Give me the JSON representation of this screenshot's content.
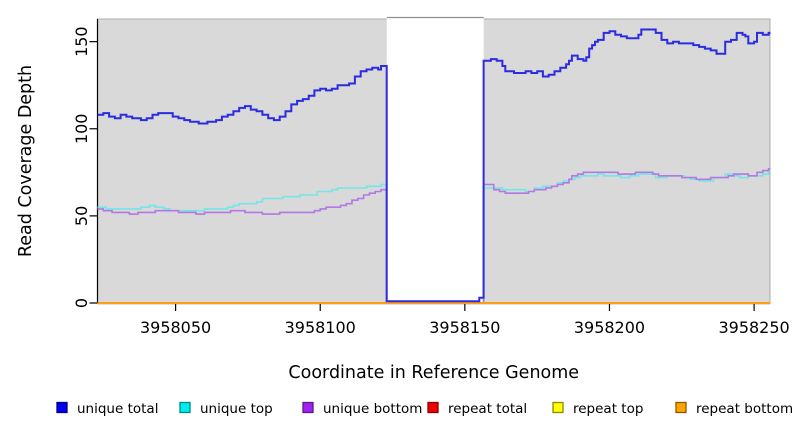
{
  "chart_data": {
    "type": "line",
    "title": "",
    "xlabel": "Coordinate in Reference Genome",
    "ylabel": "Read Coverage Depth",
    "xlim": [
      3958023,
      3958255.5
    ],
    "ylim": [
      0,
      163
    ],
    "grid": false,
    "plot_background": "#d9d9d9",
    "plot_border": "#ababab",
    "legend_position": "bottom",
    "x_ticks": {
      "values": [
        3958050,
        3958100,
        3958150,
        3958200,
        3958250
      ],
      "labels": [
        "3958050",
        "3958100",
        "3958150",
        "3958200",
        "3958250"
      ]
    },
    "y_ticks": {
      "values": [
        0,
        50,
        100,
        150
      ],
      "labels": [
        "0",
        "50",
        "100",
        "150"
      ]
    },
    "gap_region": {
      "x_start": 3958123,
      "x_end": 3958156.5,
      "fill": "#ffffff",
      "top_border": "#909090"
    },
    "series": [
      {
        "name": "repeat total",
        "color": "#e00000",
        "width": 1.5,
        "step": true,
        "points": [
          [
            3958023,
            0
          ],
          [
            3958256,
            0
          ]
        ]
      },
      {
        "name": "repeat top",
        "color": "#f2f200",
        "width": 1.5,
        "step": true,
        "points": [
          [
            3958023,
            0
          ],
          [
            3958256,
            0
          ]
        ]
      },
      {
        "name": "unique top",
        "color": "#74e6e8",
        "width": 1.6,
        "step": true,
        "points": [
          [
            3958023,
            55
          ],
          [
            3958026,
            54
          ],
          [
            3958029,
            54
          ],
          [
            3958032,
            54
          ],
          [
            3958035,
            54
          ],
          [
            3958038,
            55
          ],
          [
            3958041,
            56
          ],
          [
            3958043,
            55
          ],
          [
            3958046,
            54
          ],
          [
            3958048,
            53
          ],
          [
            3958051,
            53
          ],
          [
            3958054,
            53
          ],
          [
            3958057,
            53
          ],
          [
            3958060,
            54
          ],
          [
            3958063,
            54
          ],
          [
            3958066,
            54
          ],
          [
            3958068,
            55
          ],
          [
            3958070,
            56
          ],
          [
            3958072,
            57
          ],
          [
            3958075,
            57
          ],
          [
            3958078,
            58
          ],
          [
            3958080,
            60
          ],
          [
            3958084,
            60
          ],
          [
            3958087,
            61
          ],
          [
            3958090,
            61
          ],
          [
            3958093,
            62
          ],
          [
            3958096,
            62
          ],
          [
            3958099,
            64
          ],
          [
            3958102,
            64
          ],
          [
            3958104,
            65
          ],
          [
            3958106,
            66
          ],
          [
            3958110,
            66
          ],
          [
            3958113,
            66
          ],
          [
            3958116,
            67
          ],
          [
            3958119,
            67
          ],
          [
            3958121,
            68
          ],
          [
            3958123,
            0
          ],
          [
            3958156.5,
            66
          ],
          [
            3958160,
            66
          ],
          [
            3958163,
            65
          ],
          [
            3958166,
            65
          ],
          [
            3958169,
            65
          ],
          [
            3958171,
            64
          ],
          [
            3958174,
            66
          ],
          [
            3958177,
            67
          ],
          [
            3958180,
            67
          ],
          [
            3958182,
            69
          ],
          [
            3958184,
            70
          ],
          [
            3958186,
            71
          ],
          [
            3958188,
            72
          ],
          [
            3958190,
            73
          ],
          [
            3958193,
            73
          ],
          [
            3958196,
            74
          ],
          [
            3958198,
            73
          ],
          [
            3958201,
            73
          ],
          [
            3958204,
            72
          ],
          [
            3958207,
            73
          ],
          [
            3958210,
            74
          ],
          [
            3958213,
            74
          ],
          [
            3958216,
            72
          ],
          [
            3958218,
            72
          ],
          [
            3958220,
            73
          ],
          [
            3958223,
            73
          ],
          [
            3958226,
            72
          ],
          [
            3958228,
            71
          ],
          [
            3958231,
            70
          ],
          [
            3958234,
            70
          ],
          [
            3958236,
            72
          ],
          [
            3958239,
            72
          ],
          [
            3958240,
            74
          ],
          [
            3958243,
            73
          ],
          [
            3958245,
            72
          ],
          [
            3958248,
            73
          ],
          [
            3958251,
            73
          ],
          [
            3958253,
            74
          ],
          [
            3958255,
            76
          ],
          [
            3958256,
            76
          ]
        ]
      },
      {
        "name": "unique bottom",
        "color": "#b279e2",
        "width": 1.6,
        "step": true,
        "points": [
          [
            3958023,
            54
          ],
          [
            3958025,
            53
          ],
          [
            3958028,
            52
          ],
          [
            3958031,
            52
          ],
          [
            3958034,
            51
          ],
          [
            3958037,
            52
          ],
          [
            3958040,
            52
          ],
          [
            3958043,
            53
          ],
          [
            3958046,
            53
          ],
          [
            3958049,
            53
          ],
          [
            3958051,
            52
          ],
          [
            3958054,
            52
          ],
          [
            3958057,
            51
          ],
          [
            3958060,
            52
          ],
          [
            3958063,
            52
          ],
          [
            3958066,
            52
          ],
          [
            3958069,
            53
          ],
          [
            3958071,
            53
          ],
          [
            3958074,
            52
          ],
          [
            3958077,
            52
          ],
          [
            3958080,
            51
          ],
          [
            3958083,
            51
          ],
          [
            3958086,
            52
          ],
          [
            3958089,
            52
          ],
          [
            3958092,
            52
          ],
          [
            3958095,
            52
          ],
          [
            3958098,
            53
          ],
          [
            3958100,
            54
          ],
          [
            3958102,
            55
          ],
          [
            3958105,
            55
          ],
          [
            3958107,
            56
          ],
          [
            3958109,
            57
          ],
          [
            3958111,
            59
          ],
          [
            3958113,
            60
          ],
          [
            3958115,
            62
          ],
          [
            3958117,
            63
          ],
          [
            3958119,
            64
          ],
          [
            3958121,
            65
          ],
          [
            3958123,
            0
          ],
          [
            3958156.5,
            68
          ],
          [
            3958159,
            68
          ],
          [
            3958160,
            65
          ],
          [
            3958162,
            64
          ],
          [
            3958164,
            63
          ],
          [
            3958167,
            63
          ],
          [
            3958170,
            63
          ],
          [
            3958172,
            64
          ],
          [
            3958174,
            65
          ],
          [
            3958176,
            65
          ],
          [
            3958178,
            66
          ],
          [
            3958180,
            67
          ],
          [
            3958182,
            68
          ],
          [
            3958184,
            69
          ],
          [
            3958186,
            71
          ],
          [
            3958187,
            73
          ],
          [
            3958189,
            74
          ],
          [
            3958191,
            75
          ],
          [
            3958194,
            75
          ],
          [
            3958197,
            75
          ],
          [
            3958200,
            75
          ],
          [
            3958203,
            74
          ],
          [
            3958206,
            74
          ],
          [
            3958209,
            75
          ],
          [
            3958212,
            75
          ],
          [
            3958215,
            74
          ],
          [
            3958217,
            73
          ],
          [
            3958220,
            73
          ],
          [
            3958223,
            73
          ],
          [
            3958225,
            72
          ],
          [
            3958228,
            72
          ],
          [
            3958230,
            71
          ],
          [
            3958233,
            71
          ],
          [
            3958235,
            72
          ],
          [
            3958238,
            72
          ],
          [
            3958241,
            73
          ],
          [
            3958243,
            74
          ],
          [
            3958246,
            74
          ],
          [
            3958248,
            73
          ],
          [
            3958250,
            73
          ],
          [
            3958251,
            75
          ],
          [
            3958253,
            76
          ],
          [
            3958255,
            77
          ],
          [
            3958256,
            77
          ]
        ]
      },
      {
        "name": "repeat bottom",
        "color": "#ff9d15",
        "width": 2,
        "step": true,
        "points": [
          [
            3958023,
            0
          ],
          [
            3958256,
            0
          ]
        ]
      },
      {
        "name": "unique total",
        "color": "#2b2be0",
        "width": 2,
        "step": true,
        "points": [
          [
            3958023,
            108
          ],
          [
            3958025,
            109
          ],
          [
            3958027,
            107
          ],
          [
            3958029,
            106
          ],
          [
            3958031,
            108
          ],
          [
            3958033,
            107
          ],
          [
            3958035,
            106
          ],
          [
            3958038,
            105
          ],
          [
            3958040,
            106
          ],
          [
            3958042,
            108
          ],
          [
            3958044,
            109
          ],
          [
            3958047,
            109
          ],
          [
            3958049,
            107
          ],
          [
            3958051,
            106
          ],
          [
            3958053,
            105
          ],
          [
            3958055,
            104
          ],
          [
            3958058,
            103
          ],
          [
            3958061,
            104
          ],
          [
            3958064,
            105
          ],
          [
            3958066,
            107
          ],
          [
            3958068,
            108
          ],
          [
            3958070,
            110
          ],
          [
            3958072,
            112
          ],
          [
            3958074,
            113
          ],
          [
            3958076,
            111
          ],
          [
            3958078,
            110
          ],
          [
            3958080,
            108
          ],
          [
            3958082,
            106
          ],
          [
            3958084,
            105
          ],
          [
            3958086,
            107
          ],
          [
            3958088,
            110
          ],
          [
            3958090,
            114
          ],
          [
            3958092,
            116
          ],
          [
            3958094,
            117
          ],
          [
            3958096,
            119
          ],
          [
            3958098,
            122
          ],
          [
            3958100,
            123
          ],
          [
            3958102,
            122
          ],
          [
            3958104,
            123
          ],
          [
            3958106,
            125
          ],
          [
            3958108,
            125
          ],
          [
            3958110,
            126
          ],
          [
            3958112,
            130
          ],
          [
            3958114,
            133
          ],
          [
            3958116,
            134
          ],
          [
            3958118,
            135
          ],
          [
            3958120,
            134
          ],
          [
            3958121,
            136
          ],
          [
            3958123,
            1
          ],
          [
            3958154,
            1
          ],
          [
            3958155,
            3
          ],
          [
            3958156.5,
            139
          ],
          [
            3958159,
            140
          ],
          [
            3958161,
            139
          ],
          [
            3958163,
            136
          ],
          [
            3958164,
            133
          ],
          [
            3958167,
            132
          ],
          [
            3958169,
            132
          ],
          [
            3958171,
            133
          ],
          [
            3958173,
            132
          ],
          [
            3958175,
            133
          ],
          [
            3958177,
            130
          ],
          [
            3958179,
            131
          ],
          [
            3958181,
            133
          ],
          [
            3958183,
            135
          ],
          [
            3958185,
            137
          ],
          [
            3958186,
            139
          ],
          [
            3958187,
            142
          ],
          [
            3958189,
            140
          ],
          [
            3958191,
            139
          ],
          [
            3958192,
            141
          ],
          [
            3958193,
            146
          ],
          [
            3958194,
            148
          ],
          [
            3958195,
            150
          ],
          [
            3958196,
            151
          ],
          [
            3958198,
            155
          ],
          [
            3958200,
            156
          ],
          [
            3958202,
            154
          ],
          [
            3958204,
            153
          ],
          [
            3958206,
            152
          ],
          [
            3958208,
            152
          ],
          [
            3958210,
            154
          ],
          [
            3958211,
            157
          ],
          [
            3958214,
            157
          ],
          [
            3958216,
            155
          ],
          [
            3958218,
            151
          ],
          [
            3958220,
            149
          ],
          [
            3958222,
            150
          ],
          [
            3958224,
            149
          ],
          [
            3958227,
            149
          ],
          [
            3958229,
            148
          ],
          [
            3958231,
            147
          ],
          [
            3958233,
            146
          ],
          [
            3958235,
            145
          ],
          [
            3958237,
            143
          ],
          [
            3958239,
            143
          ],
          [
            3958240,
            150
          ],
          [
            3958242,
            151
          ],
          [
            3958244,
            155
          ],
          [
            3958246,
            154
          ],
          [
            3958247,
            153
          ],
          [
            3958248,
            149
          ],
          [
            3958250,
            150
          ],
          [
            3958251,
            155
          ],
          [
            3958253,
            154
          ],
          [
            3958255,
            155
          ],
          [
            3958256,
            155
          ]
        ]
      }
    ],
    "legend": {
      "items": [
        {
          "label": "unique total",
          "fill": "#0000ee",
          "border": "#00008b"
        },
        {
          "label": "unique top",
          "fill": "#00eeee",
          "border": "#008b8b"
        },
        {
          "label": "unique bottom",
          "fill": "#a020f0",
          "border": "#551a8b"
        },
        {
          "label": "repeat total",
          "fill": "#ee0000",
          "border": "#8b0000"
        },
        {
          "label": "repeat top",
          "fill": "#ffff00",
          "border": "#8b8b00"
        },
        {
          "label": "repeat bottom",
          "fill": "#ffa500",
          "border": "#8b5a00"
        }
      ]
    }
  }
}
